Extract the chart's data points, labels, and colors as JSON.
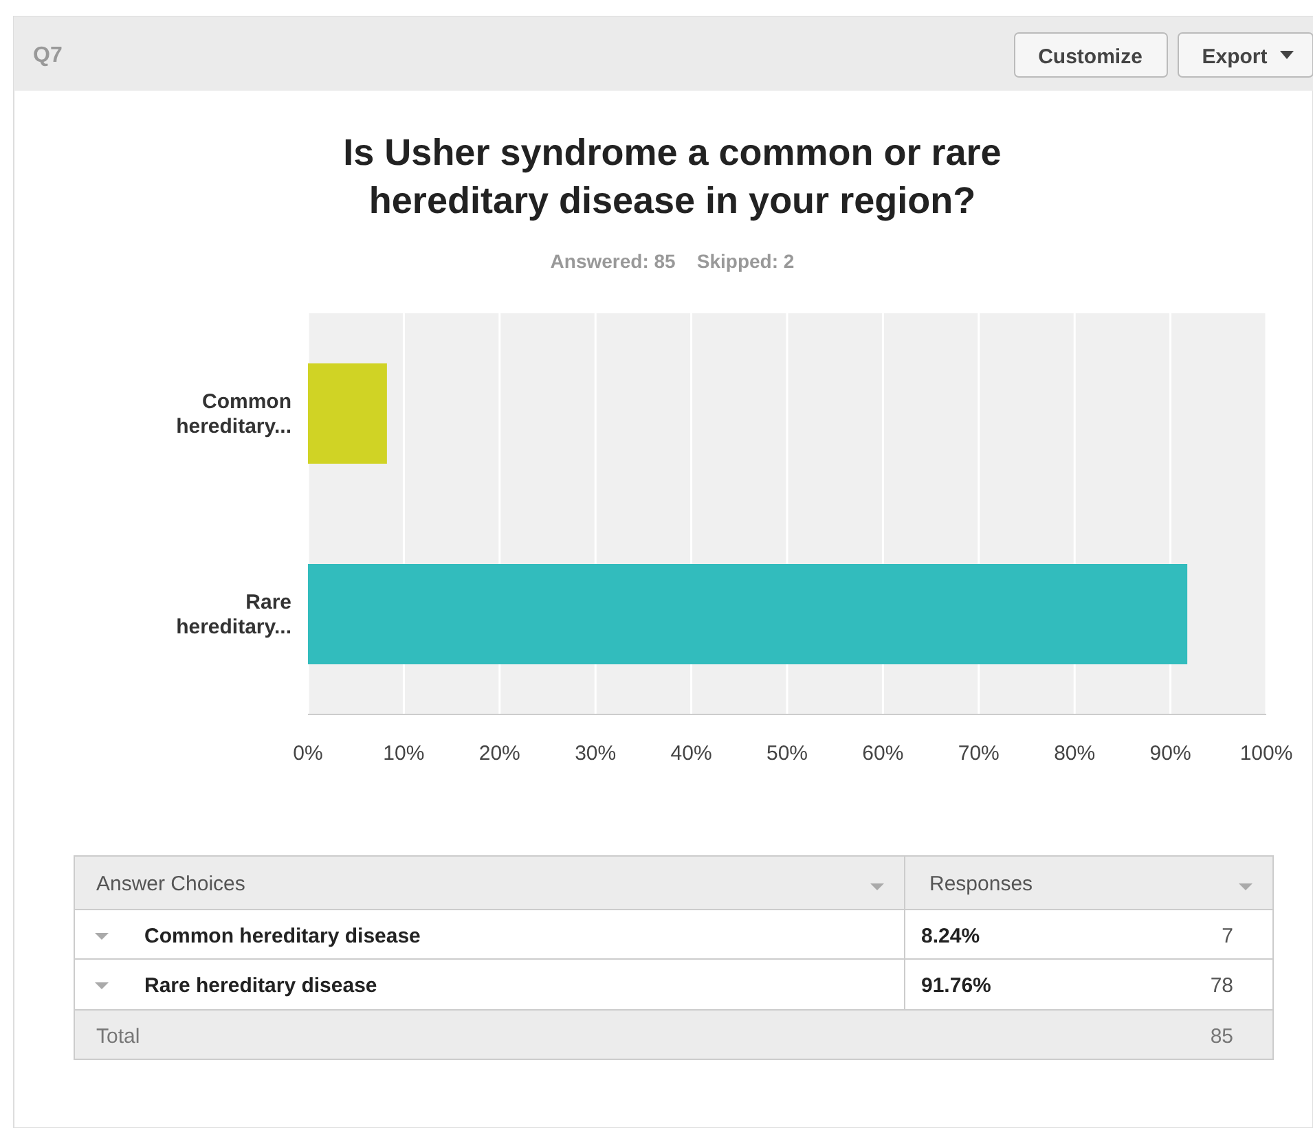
{
  "chart_data": {
    "type": "bar",
    "orientation": "horizontal",
    "title": "Is Usher syndrome a common or rare\nhereditary disease in your region?",
    "subtitle": "Answered: 85    Skipped: 2",
    "categories": [
      "Common\nhereditary...",
      "Rare\nhereditary..."
    ],
    "values": [
      8.24,
      91.76
    ],
    "colors": [
      "#d0d325",
      "#32bcbd"
    ],
    "xlim": [
      0,
      100
    ],
    "xticks": [
      {
        "value": 0,
        "label": "0%"
      },
      {
        "value": 10,
        "label": "10%"
      },
      {
        "value": 20,
        "label": "20%"
      },
      {
        "value": 30,
        "label": "30%"
      },
      {
        "value": 40,
        "label": "40%"
      },
      {
        "value": 50,
        "label": "50%"
      },
      {
        "value": 60,
        "label": "60%"
      },
      {
        "value": 70,
        "label": "70%"
      },
      {
        "value": 80,
        "label": "80%"
      },
      {
        "value": 90,
        "label": "90%"
      },
      {
        "value": 100,
        "label": "100%"
      }
    ],
    "grid": "x",
    "annotations": [
      "Q7",
      "Customize",
      "Export",
      "Answer Choices",
      "Responses",
      "Common hereditary disease",
      "8.24%",
      "7",
      "Rare hereditary disease",
      "91.76%",
      "78",
      "Total",
      "85"
    ]
  }
}
